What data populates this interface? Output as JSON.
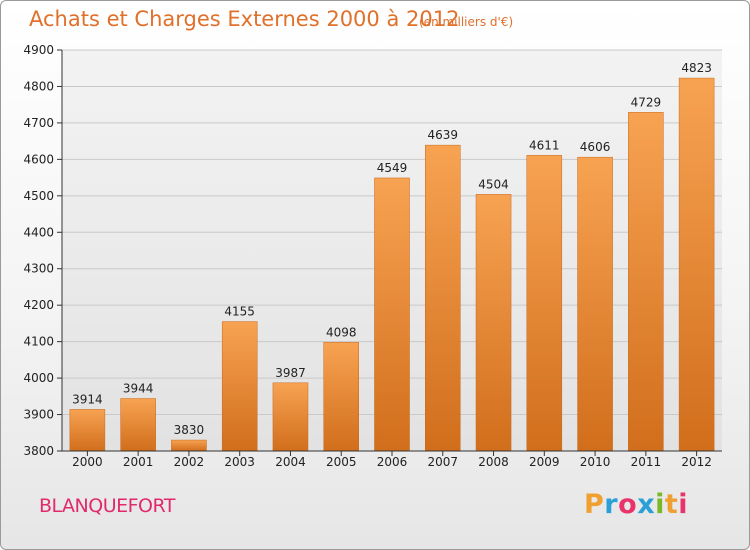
{
  "title": "Achats et Charges Externes 2000 à 2012",
  "subtitle": "(en milliers d'€)",
  "city": "BLANQUEFORT",
  "logo": {
    "letters": [
      "P",
      "r",
      "o",
      "x",
      "i",
      "t",
      "i"
    ],
    "colors": [
      "#f0a030",
      "#2a9fd8",
      "#e8336b",
      "#2a9fd8",
      "#7ab828",
      "#f0a030",
      "#e8336b"
    ]
  },
  "chart_data": {
    "type": "bar",
    "categories": [
      "2000",
      "2001",
      "2002",
      "2003",
      "2004",
      "2005",
      "2006",
      "2007",
      "2008",
      "2009",
      "2010",
      "2011",
      "2012"
    ],
    "values": [
      3914,
      3944,
      3830,
      4155,
      3987,
      4098,
      4549,
      4639,
      4504,
      4611,
      4606,
      4729,
      4823
    ],
    "ylim": [
      3800,
      4900
    ],
    "yticks": [
      3800,
      3900,
      4000,
      4100,
      4200,
      4300,
      4400,
      4500,
      4600,
      4700,
      4800,
      4900
    ],
    "grid": true,
    "bar_color_top": "#f7a352",
    "bar_color_bottom": "#d16e1c"
  }
}
